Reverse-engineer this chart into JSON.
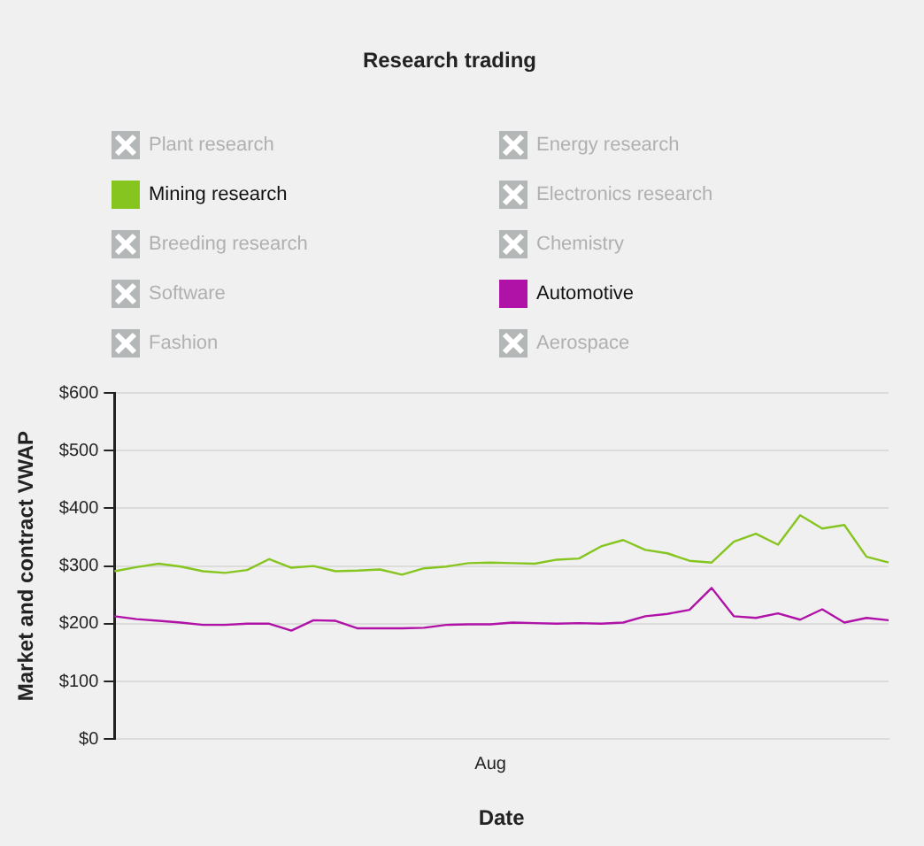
{
  "chart_data": {
    "type": "line",
    "title": "Research trading",
    "xlabel": "Date",
    "ylabel": "Market and contract VWAP",
    "categories": [
      null,
      null,
      null,
      null,
      null,
      null,
      null,
      null,
      null,
      null,
      null,
      null,
      null,
      null,
      null,
      null,
      null,
      "Aug",
      null,
      null,
      null,
      null,
      null,
      null,
      null,
      null,
      null,
      null,
      null,
      null,
      null,
      null,
      null,
      null,
      null,
      null
    ],
    "series": [
      {
        "name": "Plant research",
        "values": [
          null,
          null,
          null,
          null,
          null,
          null,
          null,
          null,
          null,
          null,
          null,
          null,
          null,
          null,
          null,
          null,
          null,
          null,
          null,
          null,
          null,
          null,
          null,
          null,
          null,
          null,
          null,
          null,
          null,
          null,
          null,
          null,
          null,
          null,
          null,
          null
        ]
      },
      {
        "name": "Mining research",
        "color": "#86c51f",
        "values": [
          291,
          298,
          304,
          299,
          291,
          288,
          293,
          312,
          297,
          300,
          291,
          292,
          294,
          285,
          296,
          299,
          305,
          306,
          305,
          304,
          311,
          313,
          334,
          345,
          328,
          322,
          309,
          306,
          342,
          356,
          337,
          388,
          365,
          371,
          316,
          306
        ]
      },
      {
        "name": "Breeding research",
        "values": [
          null,
          null,
          null,
          null,
          null,
          null,
          null,
          null,
          null,
          null,
          null,
          null,
          null,
          null,
          null,
          null,
          null,
          null,
          null,
          null,
          null,
          null,
          null,
          null,
          null,
          null,
          null,
          null,
          null,
          null,
          null,
          null,
          null,
          null,
          null,
          null
        ]
      },
      {
        "name": "Software",
        "values": [
          null,
          null,
          null,
          null,
          null,
          null,
          null,
          null,
          null,
          null,
          null,
          null,
          null,
          null,
          null,
          null,
          null,
          null,
          null,
          null,
          null,
          null,
          null,
          null,
          null,
          null,
          null,
          null,
          null,
          null,
          null,
          null,
          null,
          null,
          null,
          null
        ]
      },
      {
        "name": "Fashion",
        "values": [
          null,
          null,
          null,
          null,
          null,
          null,
          null,
          null,
          null,
          null,
          null,
          null,
          null,
          null,
          null,
          null,
          null,
          null,
          null,
          null,
          null,
          null,
          null,
          null,
          null,
          null,
          null,
          null,
          null,
          null,
          null,
          null,
          null,
          null,
          null,
          null
        ]
      },
      {
        "name": "Energy research",
        "values": [
          null,
          null,
          null,
          null,
          null,
          null,
          null,
          null,
          null,
          null,
          null,
          null,
          null,
          null,
          null,
          null,
          null,
          null,
          null,
          null,
          null,
          null,
          null,
          null,
          null,
          null,
          null,
          null,
          null,
          null,
          null,
          null,
          null,
          null,
          null,
          null
        ]
      },
      {
        "name": "Electronics research",
        "values": [
          null,
          null,
          null,
          null,
          null,
          null,
          null,
          null,
          null,
          null,
          null,
          null,
          null,
          null,
          null,
          null,
          null,
          null,
          null,
          null,
          null,
          null,
          null,
          null,
          null,
          null,
          null,
          null,
          null,
          null,
          null,
          null,
          null,
          null,
          null,
          null
        ]
      },
      {
        "name": "Chemistry",
        "values": [
          null,
          null,
          null,
          null,
          null,
          null,
          null,
          null,
          null,
          null,
          null,
          null,
          null,
          null,
          null,
          null,
          null,
          null,
          null,
          null,
          null,
          null,
          null,
          null,
          null,
          null,
          null,
          null,
          null,
          null,
          null,
          null,
          null,
          null,
          null,
          null
        ]
      },
      {
        "name": "Automotive",
        "color": "#b012a8",
        "values": [
          213,
          208,
          205,
          202,
          198,
          198,
          200,
          200,
          188,
          206,
          205,
          192,
          192,
          192,
          193,
          198,
          199,
          199,
          202,
          201,
          200,
          201,
          200,
          202,
          213,
          217,
          224,
          262,
          213,
          210,
          218,
          207,
          225,
          202,
          210,
          206
        ]
      },
      {
        "name": "Aerospace",
        "values": [
          null,
          null,
          null,
          null,
          null,
          null,
          null,
          null,
          null,
          null,
          null,
          null,
          null,
          null,
          null,
          null,
          null,
          null,
          null,
          null,
          null,
          null,
          null,
          null,
          null,
          null,
          null,
          null,
          null,
          null,
          null,
          null,
          null,
          null,
          null,
          null
        ]
      }
    ],
    "ylim": [
      0,
      600
    ],
    "yticks": [
      {
        "value": 0,
        "label": "$0"
      },
      {
        "value": 100,
        "label": "$100"
      },
      {
        "value": 200,
        "label": "$200"
      },
      {
        "value": 300,
        "label": "$300"
      },
      {
        "value": 400,
        "label": "$400"
      },
      {
        "value": 500,
        "label": "$500"
      },
      {
        "value": 600,
        "label": "$600"
      }
    ],
    "grid": "y",
    "legend": "top",
    "marker": "none",
    "line_style": "solid"
  }
}
